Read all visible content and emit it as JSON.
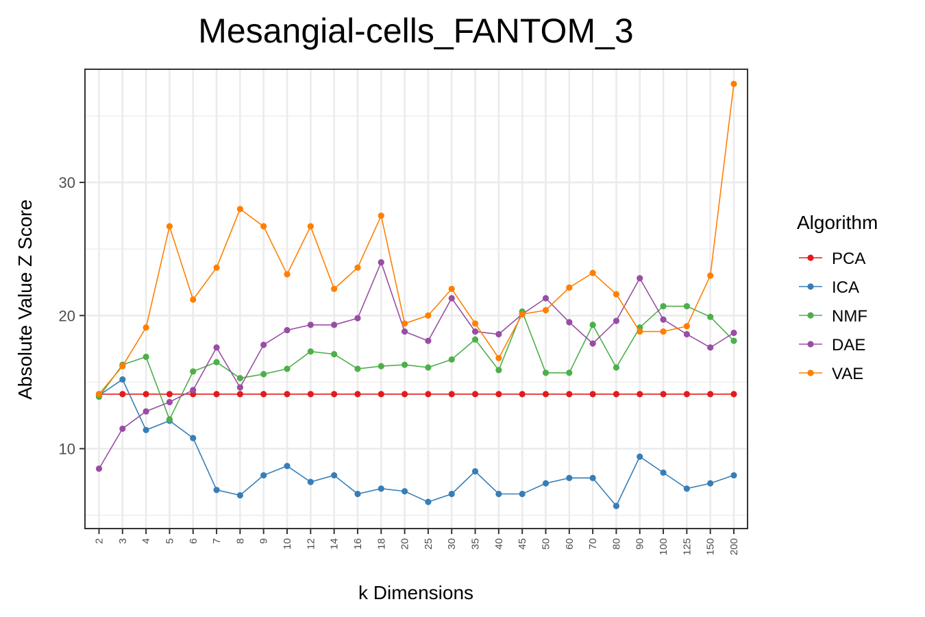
{
  "chart_data": {
    "type": "line",
    "title": "Mesangial-cells_FANTOM_3",
    "xlabel": "k Dimensions",
    "ylabel": "Absolute Value Z Score",
    "categories": [
      "2",
      "3",
      "4",
      "5",
      "6",
      "7",
      "8",
      "9",
      "10",
      "12",
      "14",
      "16",
      "18",
      "20",
      "25",
      "30",
      "35",
      "40",
      "45",
      "50",
      "60",
      "70",
      "80",
      "90",
      "100",
      "125",
      "150",
      "200"
    ],
    "ylim": [
      4.0,
      38.5
    ],
    "yticks": [
      10,
      20,
      30
    ],
    "grid": true,
    "legend": {
      "title": "Algorithm",
      "position": "right"
    },
    "series": [
      {
        "name": "PCA",
        "color": "#E41A1C",
        "values": [
          14.1,
          14.1,
          14.1,
          14.1,
          14.1,
          14.1,
          14.1,
          14.1,
          14.1,
          14.1,
          14.1,
          14.1,
          14.1,
          14.1,
          14.1,
          14.1,
          14.1,
          14.1,
          14.1,
          14.1,
          14.1,
          14.1,
          14.1,
          14.1,
          14.1,
          14.1,
          14.1,
          14.1
        ]
      },
      {
        "name": "ICA",
        "color": "#377EB8",
        "values": [
          14.0,
          15.2,
          11.4,
          12.1,
          10.8,
          6.9,
          6.5,
          8.0,
          8.7,
          7.5,
          8.0,
          6.6,
          7.0,
          6.8,
          6.0,
          6.6,
          8.3,
          6.6,
          6.6,
          7.4,
          7.8,
          7.8,
          5.7,
          9.4,
          8.2,
          7.0,
          7.4,
          8.0
        ]
      },
      {
        "name": "NMF",
        "color": "#4DAF4A",
        "values": [
          13.9,
          16.3,
          16.9,
          12.2,
          15.8,
          16.5,
          15.3,
          15.6,
          16.0,
          17.3,
          17.1,
          16.0,
          16.2,
          16.3,
          16.1,
          16.7,
          18.2,
          15.9,
          20.3,
          15.7,
          15.7,
          19.3,
          16.1,
          19.1,
          20.7,
          20.7,
          19.9,
          18.1
        ]
      },
      {
        "name": "DAE",
        "color": "#984EA3",
        "values": [
          8.5,
          11.5,
          12.8,
          13.5,
          14.4,
          17.6,
          14.6,
          17.8,
          18.9,
          19.3,
          19.3,
          19.8,
          24.0,
          18.8,
          18.1,
          21.3,
          18.8,
          18.6,
          20.1,
          21.3,
          19.5,
          17.9,
          19.6,
          22.8,
          19.7,
          18.6,
          17.6,
          18.7
        ]
      },
      {
        "name": "VAE",
        "color": "#FF7F00",
        "values": [
          14.1,
          16.2,
          19.1,
          26.7,
          21.2,
          23.6,
          28.0,
          26.7,
          23.1,
          26.7,
          22.0,
          23.6,
          27.5,
          19.4,
          20.0,
          22.0,
          19.4,
          16.8,
          20.1,
          20.4,
          22.1,
          23.2,
          21.6,
          18.8,
          18.8,
          19.2,
          23.0,
          37.4
        ]
      }
    ]
  }
}
